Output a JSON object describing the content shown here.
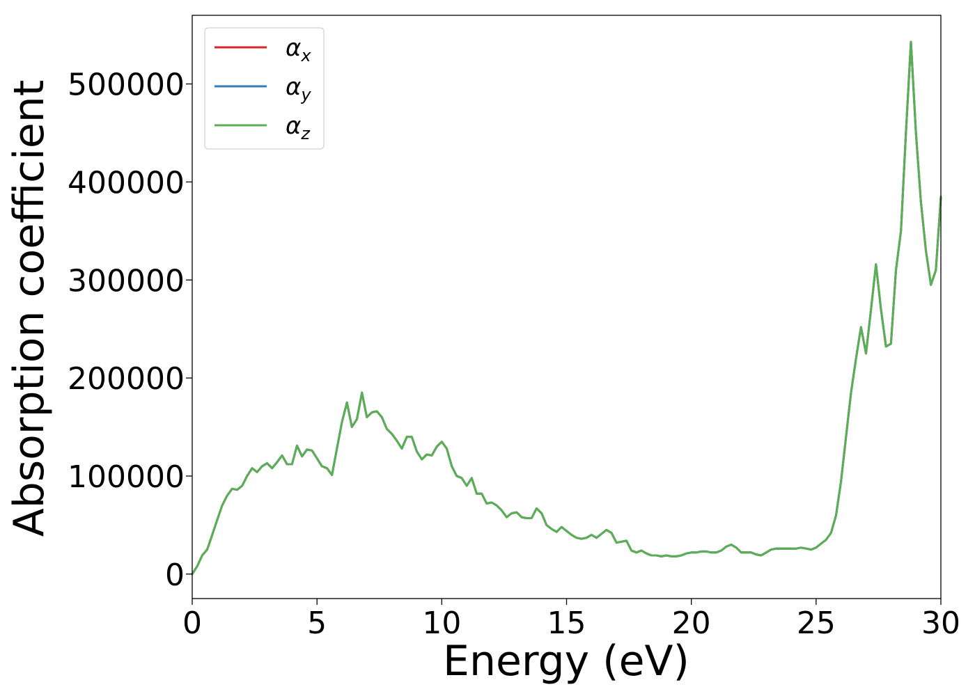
{
  "chart_data": {
    "type": "line",
    "xlabel": "Energy (eV)",
    "ylabel": "Absorption coefficient",
    "xlim": [
      0,
      30
    ],
    "ylim": [
      -25000,
      570000
    ],
    "xticks": [
      0,
      5,
      10,
      15,
      20,
      25,
      30
    ],
    "yticks": [
      0,
      100000,
      200000,
      300000,
      400000,
      500000
    ],
    "xtick_labels": [
      "0",
      "5",
      "10",
      "15",
      "20",
      "25",
      "30"
    ],
    "ytick_labels": [
      "0",
      "100000",
      "200000",
      "300000",
      "400000",
      "500000"
    ],
    "grid": false,
    "legend_position": "top-left",
    "series": [
      {
        "name": "α",
        "subscript": "x",
        "color": "#d62728"
      },
      {
        "name": "α",
        "subscript": "y",
        "color": "#377eb8"
      },
      {
        "name": "α",
        "subscript": "z",
        "color": "#5aaf55"
      }
    ],
    "x": [
      0,
      0.2,
      0.4,
      0.6,
      0.8,
      1.0,
      1.2,
      1.4,
      1.6,
      1.8,
      2.0,
      2.2,
      2.4,
      2.6,
      2.8,
      3.0,
      3.2,
      3.4,
      3.6,
      3.8,
      4.0,
      4.2,
      4.4,
      4.6,
      4.8,
      5.0,
      5.2,
      5.4,
      5.6,
      5.8,
      6.0,
      6.2,
      6.4,
      6.6,
      6.8,
      7.0,
      7.2,
      7.4,
      7.6,
      7.8,
      8.0,
      8.2,
      8.4,
      8.6,
      8.8,
      9.0,
      9.2,
      9.4,
      9.6,
      9.8,
      10.0,
      10.2,
      10.4,
      10.6,
      10.8,
      11.0,
      11.2,
      11.4,
      11.6,
      11.8,
      12.0,
      12.2,
      12.4,
      12.6,
      12.8,
      13.0,
      13.2,
      13.4,
      13.6,
      13.8,
      14.0,
      14.2,
      14.4,
      14.6,
      14.8,
      15.0,
      15.2,
      15.4,
      15.6,
      15.8,
      16.0,
      16.2,
      16.4,
      16.6,
      16.8,
      17.0,
      17.2,
      17.4,
      17.6,
      17.8,
      18.0,
      18.2,
      18.4,
      18.6,
      18.8,
      19.0,
      19.2,
      19.4,
      19.6,
      19.8,
      20.0,
      20.2,
      20.4,
      20.6,
      20.8,
      21.0,
      21.2,
      21.4,
      21.6,
      21.8,
      22.0,
      22.2,
      22.4,
      22.6,
      22.8,
      23.0,
      23.2,
      23.4,
      23.6,
      23.8,
      24.0,
      24.2,
      24.4,
      24.6,
      24.8,
      25.0,
      25.2,
      25.4,
      25.6,
      25.8,
      26.0,
      26.2,
      26.4,
      26.6,
      26.8,
      27.0,
      27.2,
      27.4,
      27.6,
      27.8,
      28.0,
      28.2,
      28.4,
      28.6,
      28.8,
      29.0,
      29.2,
      29.4,
      29.6,
      29.8,
      30.0
    ],
    "y": [
      0,
      8000,
      19000,
      25000,
      40000,
      55000,
      70000,
      80000,
      87000,
      86000,
      90000,
      100000,
      108000,
      104000,
      110000,
      113000,
      108000,
      114000,
      121000,
      112000,
      112000,
      131000,
      120000,
      127000,
      126000,
      118000,
      110000,
      108000,
      101000,
      128000,
      155000,
      175000,
      150000,
      158000,
      185000,
      160000,
      165000,
      166000,
      160000,
      148000,
      143000,
      136000,
      128000,
      140000,
      140000,
      125000,
      117000,
      122000,
      121000,
      130000,
      135000,
      128000,
      110000,
      100000,
      98000,
      90000,
      98000,
      82000,
      82000,
      72000,
      73000,
      70000,
      65000,
      58000,
      62000,
      63000,
      58000,
      57000,
      57000,
      67000,
      62000,
      50000,
      46000,
      43000,
      48000,
      44000,
      40000,
      37000,
      36000,
      37000,
      40000,
      37000,
      41000,
      45000,
      42000,
      32000,
      33000,
      34000,
      24000,
      22000,
      24000,
      21000,
      19000,
      19000,
      18000,
      19000,
      18000,
      18000,
      19000,
      21000,
      22000,
      22000,
      23000,
      23000,
      22000,
      22000,
      24000,
      28000,
      30000,
      27000,
      22000,
      22000,
      22000,
      20000,
      19000,
      22000,
      25000,
      26000,
      26000,
      26000,
      26000,
      26000,
      27000,
      26000,
      25000,
      27000,
      31000,
      35000,
      42000,
      60000,
      95000,
      140000,
      185000,
      220000,
      252000,
      225000,
      270000,
      316000,
      270000,
      232000,
      235000,
      310000,
      350000,
      450000,
      543000,
      450000,
      380000,
      330000,
      295000,
      310000,
      385000
    ]
  }
}
